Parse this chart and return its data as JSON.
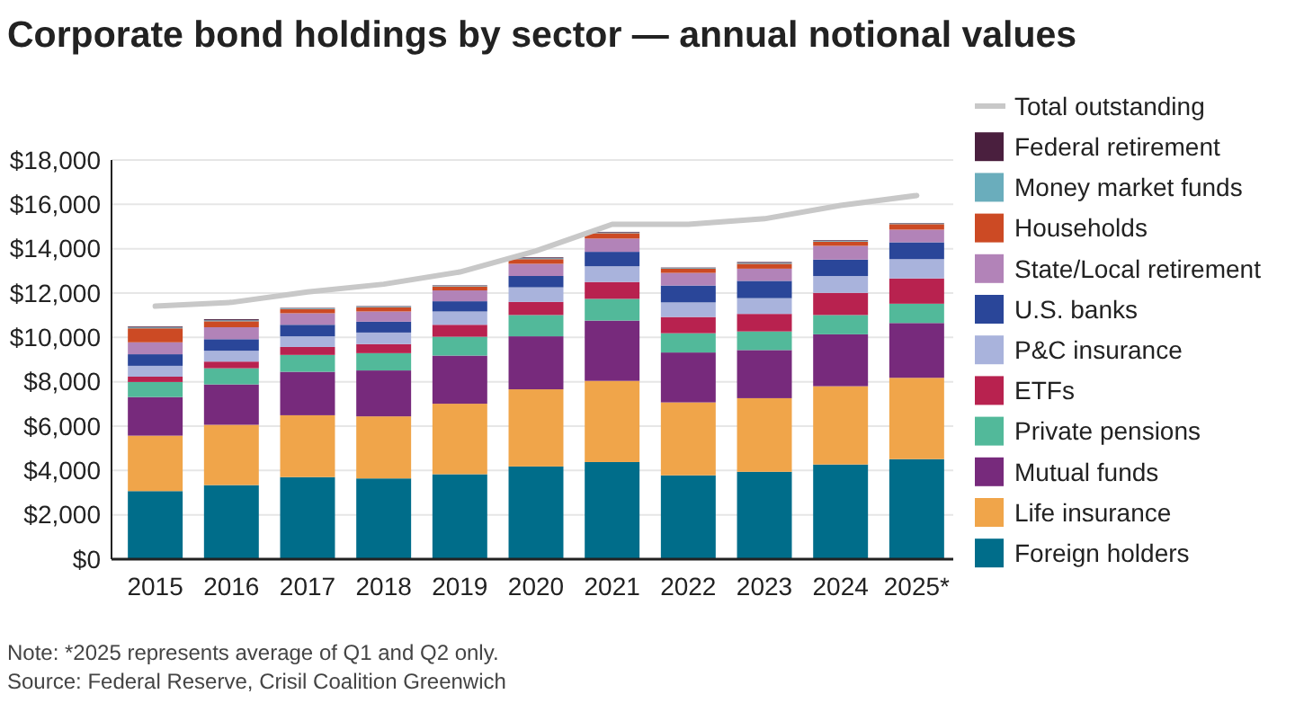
{
  "chart_data": {
    "type": "bar",
    "title": "Corporate bond holdings by sector — annual notional values",
    "categories": [
      "2015",
      "2016",
      "2017",
      "2018",
      "2019",
      "2020",
      "2021",
      "2022",
      "2023",
      "2024",
      "2025*"
    ],
    "stacked": true,
    "series": [
      {
        "name": "Foreign holders",
        "color": "#006d8a",
        "values": [
          3070,
          3340,
          3700,
          3640,
          3830,
          4180,
          4380,
          3780,
          3940,
          4270,
          4510
        ]
      },
      {
        "name": "Life insurance",
        "color": "#f0a54a",
        "values": [
          2500,
          2720,
          2790,
          2800,
          3180,
          3480,
          3660,
          3290,
          3320,
          3530,
          3670
        ]
      },
      {
        "name": "Mutual funds",
        "color": "#772a7c",
        "values": [
          1740,
          1820,
          1960,
          2070,
          2170,
          2390,
          2720,
          2250,
          2170,
          2340,
          2470
        ]
      },
      {
        "name": "Private pensions",
        "color": "#52b99a",
        "values": [
          680,
          730,
          760,
          780,
          850,
          960,
          980,
          870,
          840,
          870,
          870
        ]
      },
      {
        "name": "ETFs",
        "color": "#b8224f",
        "values": [
          240,
          300,
          360,
          410,
          540,
          590,
          760,
          730,
          790,
          1000,
          1140
        ]
      },
      {
        "name": "P&C insurance",
        "color": "#a9b3dc",
        "values": [
          490,
          490,
          480,
          520,
          600,
          660,
          710,
          660,
          710,
          760,
          870
        ]
      },
      {
        "name": "U.S. banks",
        "color": "#2a4699",
        "values": [
          520,
          520,
          520,
          490,
          460,
          510,
          650,
          760,
          780,
          740,
          760
        ]
      },
      {
        "name": "State/Local retirement",
        "color": "#b283b8",
        "values": [
          540,
          540,
          520,
          460,
          490,
          550,
          600,
          570,
          550,
          620,
          570
        ]
      },
      {
        "name": "Households",
        "color": "#cc4a24",
        "values": [
          630,
          270,
          190,
          190,
          180,
          210,
          240,
          190,
          220,
          190,
          250
        ]
      },
      {
        "name": "Money market funds",
        "color": "#6aadbc",
        "values": [
          40,
          40,
          30,
          30,
          30,
          40,
          30,
          30,
          40,
          30,
          30
        ]
      },
      {
        "name": "Federal retirement",
        "color": "#4a1f3e",
        "values": [
          40,
          50,
          20,
          20,
          20,
          40,
          30,
          20,
          40,
          30,
          20
        ]
      },
      {
        "name": "Total outstanding",
        "type": "line",
        "color": "#c8c8c8",
        "values": [
          11410,
          11580,
          12050,
          12400,
          12950,
          13900,
          15100,
          15100,
          15350,
          15950,
          16400
        ]
      }
    ],
    "ylim": [
      0,
      18000
    ],
    "yticks": [
      {
        "value": 0,
        "label": "$0"
      },
      {
        "value": 2000,
        "label": "$2,000"
      },
      {
        "value": 4000,
        "label": "$4,000"
      },
      {
        "value": 6000,
        "label": "$6,000"
      },
      {
        "value": 8000,
        "label": "$8,000"
      },
      {
        "value": 10000,
        "label": "$10,000"
      },
      {
        "value": 12000,
        "label": "$12,000"
      },
      {
        "value": 14000,
        "label": "$14,000"
      },
      {
        "value": 16000,
        "label": "$16,000"
      },
      {
        "value": 18000,
        "label": "$18,000"
      }
    ],
    "grid": "y",
    "legend": "right",
    "marker": "none",
    "annotations": [
      "Note: *2025 represents average of Q1 and Q2 only.",
      "Source: Federal Reserve, Crisil Coalition Greenwich"
    ]
  }
}
